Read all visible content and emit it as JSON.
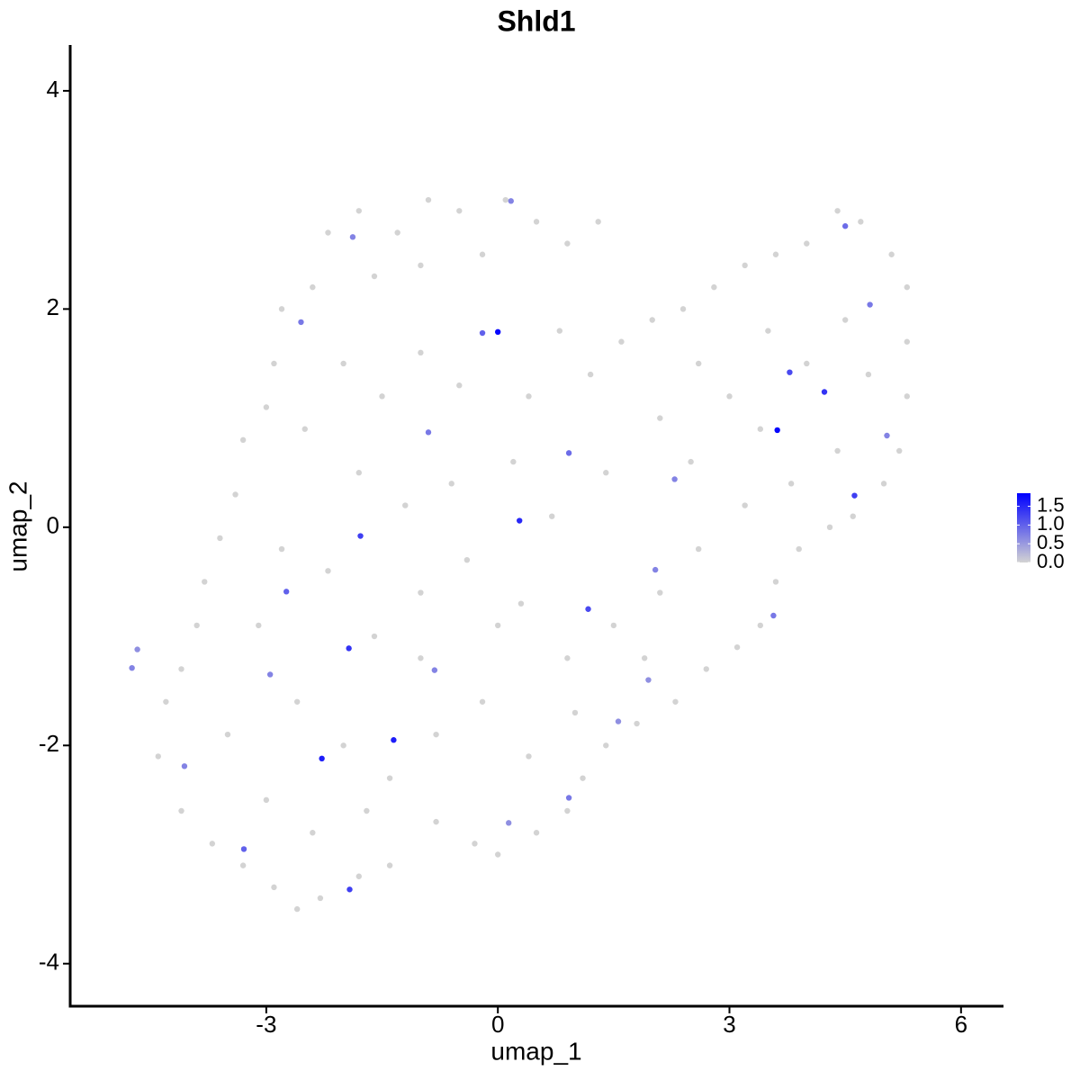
{
  "chart_data": {
    "type": "scatter",
    "title": "Shld1",
    "x_label": "umap_1",
    "y_label": "umap_2",
    "xlim": [
      -5.54,
      6.55
    ],
    "ylim": [
      -4.39,
      4.42
    ],
    "xticks": [
      -3,
      0,
      3,
      6
    ],
    "yticks": [
      -4,
      -2,
      0,
      2,
      4
    ],
    "color_low": "#d3d3d3",
    "color_high": "#0000ff",
    "color_lim": [
      0,
      1.85
    ],
    "color_ticks": [
      {
        "value": 0,
        "label": "0.0"
      },
      {
        "value": 0.5,
        "label": "0.5"
      },
      {
        "value": 1,
        "label": "1.0"
      },
      {
        "value": 1.5,
        "label": "1.5"
      }
    ],
    "x": [
      -2.2,
      -1.8,
      -1.3,
      -0.9,
      -0.5,
      0.1,
      0.5,
      0.9,
      1.3,
      -0.2,
      -1.0,
      -1.6,
      -2.4,
      -2.8,
      -2.9,
      -3.0,
      -3.3,
      -3.4,
      -3.6,
      -3.8,
      -3.9,
      -4.1,
      -4.3,
      -4.4,
      -4.1,
      -3.7,
      -3.3,
      -2.9,
      -2.6,
      -2.3,
      -1.8,
      -1.4,
      -0.8,
      -0.3,
      0.0,
      0.5,
      0.9,
      1.1,
      1.4,
      1.8,
      2.3,
      2.7,
      3.1,
      3.4,
      3.6,
      3.9,
      4.3,
      4.6,
      5.0,
      5.2,
      5.3,
      5.3,
      5.3,
      5.1,
      4.7,
      4.4,
      4.0,
      3.6,
      3.2,
      2.8,
      2.4,
      2.0,
      1.6,
      1.2,
      -2.0,
      -1.5,
      -1.0,
      -0.5,
      0.4,
      0.8,
      -2.5,
      -1.8,
      -1.2,
      -0.6,
      0.2,
      0.7,
      1.4,
      2.1,
      2.6,
      3.0,
      3.5,
      4.0,
      4.5,
      4.8,
      4.4,
      3.8,
      3.2,
      2.6,
      2.1,
      1.5,
      0.9,
      0.3,
      -0.4,
      -1.0,
      -1.6,
      -2.2,
      -2.8,
      -3.1,
      -2.6,
      -2.0,
      -1.4,
      -0.8,
      -0.2,
      0.4,
      1.0,
      -3.5,
      -3.0,
      -2.4,
      -1.7,
      -1.0,
      0.0,
      1.9,
      2.5,
      3.4,
      0.0,
      3.62,
      0.28,
      -1.78,
      -1.35,
      -2.28,
      -1.92,
      -1.93,
      4.23,
      3.78,
      1.17,
      -0.2,
      4.62,
      -2.74,
      -3.29,
      -4.74,
      -4.67,
      -1.88,
      0.17,
      4.5,
      4.82,
      -2.55,
      -0.9,
      0.92,
      2.29,
      2.04,
      3.57,
      1.56,
      0.92,
      0.14,
      -0.82,
      -2.95,
      -4.06,
      1.95,
      5.04
    ],
    "y": [
      2.7,
      2.9,
      2.7,
      3.0,
      2.9,
      3.0,
      2.8,
      2.6,
      2.8,
      2.5,
      2.4,
      2.3,
      2.2,
      2.0,
      1.5,
      1.1,
      0.8,
      0.3,
      -0.1,
      -0.5,
      -0.9,
      -1.3,
      -1.6,
      -2.1,
      -2.6,
      -2.9,
      -3.1,
      -3.3,
      -3.5,
      -3.4,
      -3.2,
      -3.1,
      -2.7,
      -2.9,
      -3.0,
      -2.8,
      -2.6,
      -2.3,
      -2.0,
      -1.8,
      -1.6,
      -1.3,
      -1.1,
      -0.9,
      -0.5,
      -0.2,
      0.0,
      0.1,
      0.4,
      0.7,
      1.2,
      1.7,
      2.2,
      2.5,
      2.8,
      2.9,
      2.6,
      2.5,
      2.4,
      2.2,
      2.0,
      1.9,
      1.7,
      1.4,
      1.5,
      1.2,
      1.6,
      1.3,
      1.2,
      1.8,
      0.9,
      0.5,
      0.2,
      0.4,
      0.6,
      0.1,
      0.5,
      1.0,
      1.5,
      1.2,
      1.8,
      1.5,
      1.9,
      1.4,
      0.7,
      0.4,
      0.2,
      -0.2,
      -0.6,
      -0.9,
      -1.2,
      -0.7,
      -0.3,
      -0.6,
      -1.0,
      -0.4,
      -0.2,
      -0.9,
      -1.6,
      -2.0,
      -2.3,
      -1.9,
      -1.6,
      -2.1,
      -1.7,
      -1.9,
      -2.5,
      -2.8,
      -2.6,
      -1.2,
      -0.9,
      -1.2,
      0.6,
      0.9,
      1.79,
      0.89,
      0.06,
      -0.08,
      -1.95,
      -2.12,
      -3.32,
      -1.11,
      1.24,
      1.42,
      -0.75,
      1.78,
      0.29,
      -0.59,
      -2.95,
      -1.29,
      -1.12,
      2.66,
      2.99,
      2.76,
      2.04,
      1.88,
      0.87,
      0.68,
      0.44,
      -0.39,
      -0.81,
      -1.78,
      -2.48,
      -2.71,
      -1.31,
      -1.35,
      -2.19,
      -1.4,
      0.84
    ],
    "values": [
      0,
      0,
      0,
      0,
      0,
      0,
      0,
      0,
      0,
      0,
      0,
      0,
      0,
      0,
      0,
      0,
      0,
      0,
      0,
      0,
      0,
      0,
      0,
      0,
      0,
      0,
      0,
      0,
      0,
      0,
      0,
      0,
      0,
      0,
      0,
      0,
      0,
      0,
      0,
      0,
      0,
      0,
      0,
      0,
      0,
      0,
      0,
      0,
      0,
      0,
      0,
      0,
      0,
      0,
      0,
      0,
      0,
      0,
      0,
      0,
      0,
      0,
      0,
      0,
      0,
      0,
      0,
      0,
      0,
      0,
      0,
      0,
      0,
      0,
      0,
      0,
      0,
      0,
      0,
      0,
      0,
      0,
      0,
      0,
      0,
      0,
      0,
      0,
      0,
      0,
      0,
      0,
      0,
      0,
      0,
      0,
      0,
      0,
      0,
      0,
      0,
      0,
      0,
      0,
      0,
      0,
      0,
      0,
      0,
      0,
      0,
      0,
      0,
      0,
      1.8,
      1.8,
      1.5,
      1.3,
      1.6,
      1.6,
      1.3,
      1.4,
      1.4,
      1.2,
      1.2,
      1.0,
      1.3,
      1.0,
      1.0,
      0.7,
      0.6,
      0.7,
      0.7,
      0.9,
      0.8,
      0.8,
      0.8,
      0.9,
      0.7,
      0.7,
      0.8,
      0.6,
      0.8,
      0.6,
      0.7,
      0.7,
      0.7,
      0.6,
      0.7
    ]
  }
}
